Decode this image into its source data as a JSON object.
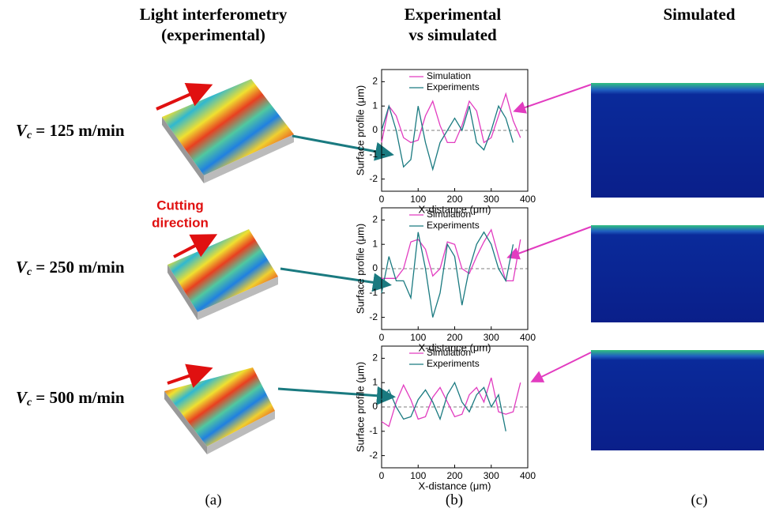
{
  "headers": [
    [
      "Light interferometry",
      "(experimental)"
    ],
    [
      "Experimental",
      "vs simulated"
    ],
    [
      "Simulated"
    ]
  ],
  "rows": [
    {
      "symbol": "V",
      "subscript": "c",
      "value": "= 125 m/min"
    },
    {
      "symbol": "V",
      "subscript": "c",
      "value": "= 250 m/min"
    },
    {
      "symbol": "V",
      "subscript": "c",
      "value": "= 500 m/min"
    }
  ],
  "annotation": [
    "Cutting",
    "direction"
  ],
  "panels": [
    "(a)",
    "(b)",
    "(c)"
  ],
  "chart_data": [
    {
      "type": "line",
      "xlabel": "X-distance (μm)",
      "ylabel": "Surface profile (μm)",
      "x": [
        0,
        20,
        40,
        60,
        80,
        100,
        120,
        140,
        160,
        180,
        200,
        220,
        240,
        260,
        280,
        300,
        320,
        340,
        360,
        380
      ],
      "series": [
        {
          "name": "Simulation",
          "color": "#e23cc0",
          "values": [
            -0.5,
            1,
            0.6,
            -0.3,
            -0.5,
            -0.4,
            0.6,
            1.2,
            0.2,
            -0.5,
            -0.5,
            0.2,
            1.2,
            0.8,
            -0.5,
            -0.3,
            0.6,
            1.5,
            0.4,
            -0.3
          ]
        },
        {
          "name": "Experiments",
          "color": "#1a7a80",
          "values": [
            0,
            1,
            0,
            -1.5,
            -1.2,
            1,
            -0.5,
            -1.6,
            -0.5,
            0,
            0.5,
            0,
            1,
            -0.5,
            -0.8,
            0,
            1,
            0.5,
            -0.5,
            null
          ]
        }
      ],
      "xlim": [
        0,
        400
      ],
      "xticks": [
        0,
        100,
        200,
        300,
        400
      ],
      "ylim": [
        -2.5,
        2.5
      ],
      "yticks": [
        -2,
        -1,
        0,
        1,
        2
      ],
      "hline": 0
    },
    {
      "type": "line",
      "xlabel": "X-distance (μm)",
      "ylabel": "Surface profile (μm)",
      "x": [
        0,
        20,
        40,
        60,
        80,
        100,
        120,
        140,
        160,
        180,
        200,
        220,
        240,
        260,
        280,
        300,
        320,
        340,
        360,
        380
      ],
      "series": [
        {
          "name": "Simulation",
          "color": "#e23cc0",
          "values": [
            -0.4,
            -0.4,
            -0.4,
            0,
            1.1,
            1.2,
            0.8,
            -0.3,
            0,
            1.1,
            1,
            0,
            -0.2,
            0.5,
            1.1,
            1.6,
            0.5,
            -0.5,
            -0.5,
            1.2
          ]
        },
        {
          "name": "Experiments",
          "color": "#1a7a80",
          "values": [
            -1,
            0.5,
            -0.5,
            -0.5,
            -1.2,
            1.5,
            0,
            -2,
            -1,
            1,
            0.5,
            -1.5,
            0,
            1,
            1.5,
            1,
            0,
            -0.5,
            1,
            null
          ]
        }
      ],
      "xlim": [
        0,
        400
      ],
      "xticks": [
        0,
        100,
        200,
        300,
        400
      ],
      "ylim": [
        -2.5,
        2.5
      ],
      "yticks": [
        -2,
        -1,
        0,
        1,
        2
      ],
      "hline": 0
    },
    {
      "type": "line",
      "xlabel": "X-distance (μm)",
      "ylabel": "Surface profile (μm)",
      "x": [
        0,
        20,
        40,
        60,
        80,
        100,
        120,
        140,
        160,
        180,
        200,
        220,
        240,
        260,
        280,
        300,
        320,
        340,
        360,
        380
      ],
      "series": [
        {
          "name": "Simulation",
          "color": "#e23cc0",
          "values": [
            -0.6,
            -0.8,
            0.2,
            0.9,
            0.3,
            -0.5,
            -0.4,
            0.4,
            0.8,
            0.2,
            -0.4,
            -0.3,
            0.5,
            0.8,
            0.2,
            1.2,
            -0.2,
            -0.3,
            -0.2,
            1
          ]
        },
        {
          "name": "Experiments",
          "color": "#1a7a80",
          "values": [
            0.3,
            0.7,
            0,
            -0.5,
            -0.4,
            0.3,
            0.7,
            0.2,
            -0.5,
            0.5,
            1,
            0.2,
            -0.2,
            0.5,
            0.8,
            0,
            0.5,
            -1,
            null,
            null
          ]
        }
      ],
      "xlim": [
        0,
        400
      ],
      "xticks": [
        0,
        100,
        200,
        300,
        400
      ],
      "ylim": [
        -2.5,
        2.5
      ],
      "yticks": [
        -2,
        -1,
        0,
        1,
        2
      ],
      "hline": 0
    }
  ]
}
